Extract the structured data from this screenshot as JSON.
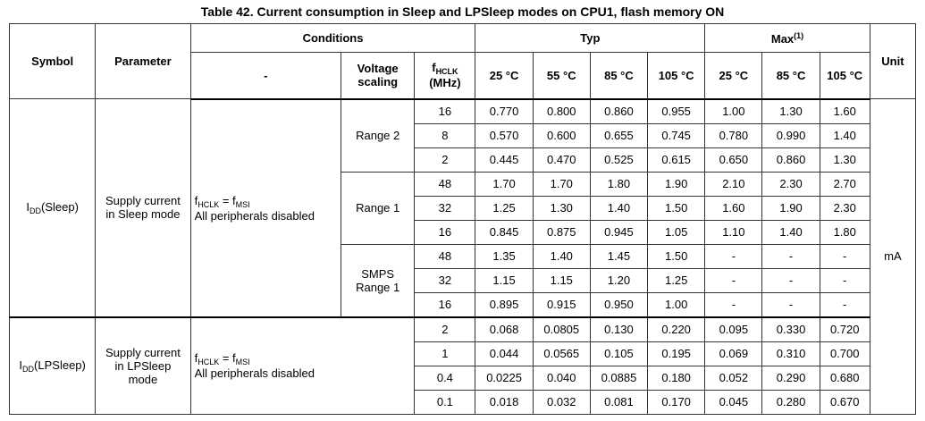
{
  "caption": "Table 42. Current consumption in Sleep and LPSleep modes on CPU1, flash memory ON",
  "headers": {
    "symbol": "Symbol",
    "parameter": "Parameter",
    "conditions": "Conditions",
    "typ": "Typ",
    "max": "Max",
    "max_note": "(1)",
    "unit": "Unit",
    "dash": "-",
    "voltage_scaling_1": "Voltage",
    "voltage_scaling_2": "scaling",
    "fhclk_f": "f",
    "fhclk_sub": "HCLK",
    "fhclk_unit": "(MHz)",
    "temps_typ": [
      "25 °C",
      "55 °C",
      "85 °C",
      "105 °C"
    ],
    "temps_max": [
      "25 °C",
      "85 °C",
      "105 °C"
    ]
  },
  "unit_value": "mA",
  "sleep": {
    "symbol_main": "I",
    "symbol_sub": "DD",
    "symbol_suffix": "(Sleep)",
    "param_line1": "Supply current",
    "param_line2": "in Sleep mode",
    "cond_f": "f",
    "cond_sub1": "HCLK",
    "cond_eq": " = f",
    "cond_sub2": "MSI",
    "cond_line2": "All peripherals disabled",
    "groups": [
      {
        "scaling_line1": "Range 2",
        "scaling_line2": "",
        "rows": [
          {
            "f": "16",
            "typ": [
              "0.770",
              "0.800",
              "0.860",
              "0.955"
            ],
            "max": [
              "1.00",
              "1.30",
              "1.60"
            ]
          },
          {
            "f": "8",
            "typ": [
              "0.570",
              "0.600",
              "0.655",
              "0.745"
            ],
            "max": [
              "0.780",
              "0.990",
              "1.40"
            ]
          },
          {
            "f": "2",
            "typ": [
              "0.445",
              "0.470",
              "0.525",
              "0.615"
            ],
            "max": [
              "0.650",
              "0.860",
              "1.30"
            ]
          }
        ]
      },
      {
        "scaling_line1": "Range 1",
        "scaling_line2": "",
        "rows": [
          {
            "f": "48",
            "typ": [
              "1.70",
              "1.70",
              "1.80",
              "1.90"
            ],
            "max": [
              "2.10",
              "2.30",
              "2.70"
            ]
          },
          {
            "f": "32",
            "typ": [
              "1.25",
              "1.30",
              "1.40",
              "1.50"
            ],
            "max": [
              "1.60",
              "1.90",
              "2.30"
            ]
          },
          {
            "f": "16",
            "typ": [
              "0.845",
              "0.875",
              "0.945",
              "1.05"
            ],
            "max": [
              "1.10",
              "1.40",
              "1.80"
            ]
          }
        ]
      },
      {
        "scaling_line1": "SMPS",
        "scaling_line2": "Range 1",
        "rows": [
          {
            "f": "48",
            "typ": [
              "1.35",
              "1.40",
              "1.45",
              "1.50"
            ],
            "max": [
              "-",
              "-",
              "-"
            ]
          },
          {
            "f": "32",
            "typ": [
              "1.15",
              "1.15",
              "1.20",
              "1.25"
            ],
            "max": [
              "-",
              "-",
              "-"
            ]
          },
          {
            "f": "16",
            "typ": [
              "0.895",
              "0.915",
              "0.950",
              "1.00"
            ],
            "max": [
              "-",
              "-",
              "-"
            ]
          }
        ]
      }
    ]
  },
  "lpsleep": {
    "symbol_main": "I",
    "symbol_sub": "DD",
    "symbol_suffix": "(LPSleep)",
    "param_line1": "Supply current",
    "param_line2": "in LPSleep",
    "param_line3": "mode",
    "cond_f": "f",
    "cond_sub1": "HCLK",
    "cond_eq": " = f",
    "cond_sub2": "MSI",
    "cond_line2": "All peripherals disabled",
    "rows": [
      {
        "f": "2",
        "typ": [
          "0.068",
          "0.0805",
          "0.130",
          "0.220"
        ],
        "max": [
          "0.095",
          "0.330",
          "0.720"
        ]
      },
      {
        "f": "1",
        "typ": [
          "0.044",
          "0.0565",
          "0.105",
          "0.195"
        ],
        "max": [
          "0.069",
          "0.310",
          "0.700"
        ]
      },
      {
        "f": "0.4",
        "typ": [
          "0.0225",
          "0.040",
          "0.0885",
          "0.180"
        ],
        "max": [
          "0.052",
          "0.290",
          "0.680"
        ]
      },
      {
        "f": "0.1",
        "typ": [
          "0.018",
          "0.032",
          "0.081",
          "0.170"
        ],
        "max": [
          "0.045",
          "0.280",
          "0.670"
        ]
      }
    ]
  }
}
